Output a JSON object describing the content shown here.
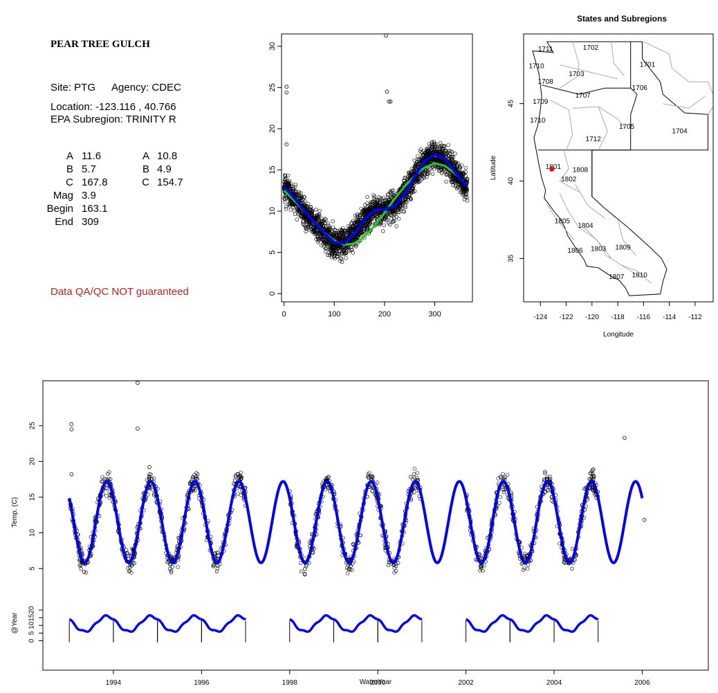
{
  "site_panel": {
    "title": "PEAR TREE GULCH",
    "site_line": "Site: PTG",
    "agency_line": "Agency: CDEC",
    "location_line": "Location: -123.116 , 40.766",
    "subregion_line": "EPA Subregion: TRINITY R",
    "params_left": [
      {
        "label": "A",
        "value": "11.6"
      },
      {
        "label": "B",
        "value": "5.7"
      },
      {
        "label": "C",
        "value": "167.8"
      },
      {
        "label": "Mag",
        "value": "3.9"
      },
      {
        "label": "Begin",
        "value": "163.1"
      },
      {
        "label": "End",
        "value": "309"
      }
    ],
    "params_right": [
      {
        "label": "A",
        "value": "10.8"
      },
      {
        "label": "B",
        "value": "4.9"
      },
      {
        "label": "C",
        "value": "154.7"
      }
    ],
    "warning": "Data QA/QC NOT guaranteed"
  },
  "chart_data": [
    {
      "type": "scatter",
      "title": "",
      "xlabel": "",
      "ylabel": "",
      "xlim": [
        -5,
        375
      ],
      "ylim": [
        -1,
        31.5
      ],
      "x_ticks": [
        "0",
        "100",
        "200",
        "300"
      ],
      "y_ticks": [
        "0",
        "5",
        "10",
        "15",
        "20",
        "25",
        "30"
      ],
      "outliers": [
        {
          "x": 5,
          "y": 25.1
        },
        {
          "x": 5,
          "y": 24.4
        },
        {
          "x": 5,
          "y": 18.1
        },
        {
          "x": 203,
          "y": 31.3
        },
        {
          "x": 205,
          "y": 24.5
        },
        {
          "x": 209,
          "y": 23.3
        },
        {
          "x": 212,
          "y": 23.3
        }
      ],
      "series": [
        {
          "name": "",
          "style": "thick blue line",
          "x": [
            0,
            20,
            40,
            60,
            80,
            100,
            120,
            140,
            160,
            180,
            200,
            220,
            240,
            260,
            280,
            300,
            320,
            340,
            360
          ],
          "y": [
            13,
            11.6,
            10.1,
            8.6,
            7.3,
            6.2,
            6.1,
            7.3,
            9,
            10.1,
            10.2,
            10.6,
            12.1,
            14.2,
            16.1,
            16.9,
            16.3,
            14.8,
            13.2
          ]
        },
        {
          "name": "",
          "style": "green line",
          "x": [
            0,
            20,
            40,
            60,
            80,
            100,
            120,
            140,
            160,
            180,
            200,
            220,
            240,
            260,
            280,
            300,
            320,
            340,
            360
          ],
          "y": [
            12.5,
            11.3,
            10,
            8.7,
            7.4,
            6.4,
            5.9,
            6.1,
            6.9,
            8.2,
            9.8,
            11.5,
            13,
            14.3,
            15.3,
            15.8,
            15.5,
            14.6,
            13.3
          ]
        }
      ]
    },
    {
      "type": "map",
      "title": "States and Subregions",
      "xlabel": "Longitude",
      "ylabel": "Latitude",
      "xlim": [
        -125.3,
        -110.6
      ],
      "ylim": [
        32.2,
        49.5
      ],
      "x_ticks": [
        "-124",
        "-122",
        "-120",
        "-118",
        "-116",
        "-114",
        "-112"
      ],
      "y_ticks": [
        "35",
        "40",
        "45"
      ],
      "site_point": {
        "lon": -123.116,
        "lat": 40.766,
        "color": "#ff0000"
      },
      "regions": [
        {
          "label": "1711",
          "lon": -123.6,
          "lat": 48.5
        },
        {
          "label": "1710",
          "lon": -124.3,
          "lat": 47.4
        },
        {
          "label": "1702",
          "lon": -120.1,
          "lat": 48.6
        },
        {
          "label": "1701",
          "lon": -115.7,
          "lat": 47.5
        },
        {
          "label": "1703",
          "lon": -121.2,
          "lat": 46.9
        },
        {
          "label": "1708",
          "lon": -123.6,
          "lat": 46.4
        },
        {
          "label": "1706",
          "lon": -116.3,
          "lat": 46
        },
        {
          "label": "1707",
          "lon": -120.7,
          "lat": 45.5
        },
        {
          "label": "1709",
          "lon": -124,
          "lat": 45.1
        },
        {
          "label": "1710",
          "lon": -124.2,
          "lat": 43.9
        },
        {
          "label": "1705",
          "lon": -117.3,
          "lat": 43.5
        },
        {
          "label": "1704",
          "lon": -113.2,
          "lat": 43.2
        },
        {
          "label": "1712",
          "lon": -119.9,
          "lat": 42.7
        },
        {
          "label": "1801",
          "lon": -123,
          "lat": 40.9
        },
        {
          "label": "1808",
          "lon": -120.9,
          "lat": 40.7
        },
        {
          "label": "1802",
          "lon": -121.8,
          "lat": 40.1
        },
        {
          "label": "1805",
          "lon": -122.3,
          "lat": 37.4
        },
        {
          "label": "1804",
          "lon": -120.5,
          "lat": 37.1
        },
        {
          "label": "1809",
          "lon": -117.6,
          "lat": 35.7
        },
        {
          "label": "1806",
          "lon": -121.3,
          "lat": 35.5
        },
        {
          "label": "1803",
          "lon": -119.5,
          "lat": 35.6
        },
        {
          "label": "1810",
          "lon": -116.3,
          "lat": 33.9
        },
        {
          "label": "1807",
          "lon": -118.1,
          "lat": 33.8
        }
      ]
    },
    {
      "type": "line",
      "title": "",
      "xlabel": "WaterYear",
      "ylabel": "Temp. (C)",
      "xlim": [
        1992.4,
        2007.5
      ],
      "ylim": [
        2.5,
        31
      ],
      "x_ticks": [
        "1994",
        "1996",
        "1998",
        "2000",
        "2002",
        "2004",
        "2006"
      ],
      "y_ticks": [
        "5",
        "10",
        "15",
        "20",
        "25"
      ],
      "segment_years": [
        1993,
        1994,
        1995,
        1996,
        1997,
        1998,
        1999,
        2000,
        2001,
        2002,
        2003,
        2004,
        2005,
        2006
      ],
      "series": [
        {
          "name": "",
          "style": "thick blue fitted seasonal line",
          "x_start": 1993,
          "x_end": 2006,
          "min_temp": 5.8,
          "max_temp": 17.2
        },
        {
          "name": "",
          "style": "black open-circle observations",
          "gaps": [
            [
              1997,
              1998
            ],
            [
              2001,
              2002
            ]
          ]
        }
      ],
      "outliers": [
        {
          "x": 1993.05,
          "y": 25.2
        },
        {
          "x": 1993.05,
          "y": 24.5
        },
        {
          "x": 1993.05,
          "y": 18.2
        },
        {
          "x": 1994.55,
          "y": 31
        },
        {
          "x": 1994.55,
          "y": 24.6
        },
        {
          "x": 2005.6,
          "y": 23.3
        }
      ]
    },
    {
      "type": "line",
      "title": "",
      "xlabel": "",
      "ylabel": "@Year",
      "xlim": [
        1992.4,
        2007.5
      ],
      "ylim": [
        -2,
        25
      ],
      "y_ticks": [
        "0",
        "5",
        "10",
        "15",
        "20"
      ],
      "years": [
        1993,
        1994,
        1995,
        1996,
        1998,
        1999,
        2000,
        2002,
        2003,
        2004
      ]
    }
  ]
}
